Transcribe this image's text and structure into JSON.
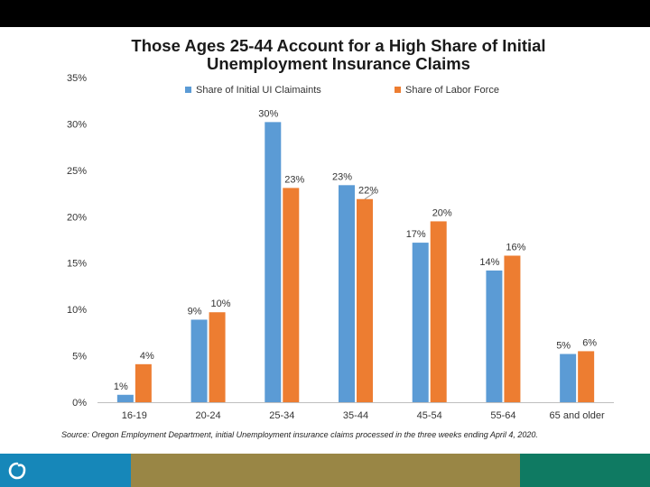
{
  "chart_data": {
    "type": "bar",
    "title_line1": "Those Ages 25-44 Account for a High Share of Initial",
    "title_line2": "Unemployment Insurance Claims",
    "categories": [
      "16-19",
      "20-24",
      "25-34",
      "35-44",
      "45-54",
      "55-64",
      "65 and older"
    ],
    "series": [
      {
        "name": "Share of Initial UI Claimaints",
        "color": "#5b9bd5",
        "values": [
          0.8,
          8.9,
          30.2,
          23.4,
          17.2,
          14.2,
          5.2
        ],
        "labels": [
          "1%",
          "9%",
          "30%",
          "23%",
          "17%",
          "14%",
          "5%"
        ]
      },
      {
        "name": "Share of Labor Force",
        "color": "#ed7d31",
        "values": [
          4.1,
          9.7,
          23.1,
          21.9,
          19.5,
          15.8,
          5.5
        ],
        "labels": [
          "4%",
          "10%",
          "23%",
          "22%",
          "20%",
          "16%",
          "6%"
        ]
      }
    ],
    "ylim": [
      0,
      35
    ],
    "yticks": [
      "0%",
      "5%",
      "10%",
      "15%",
      "20%",
      "25%",
      "30%",
      "35%"
    ],
    "legend_position": "top",
    "grid": false,
    "source": "Source: Oregon Employment Department, initial Unemployment insurance claims processed in the three weeks ending April 4, 2020."
  },
  "footer": {
    "colors": [
      "#1687b9",
      "#998645",
      "#0f7a62"
    ]
  }
}
